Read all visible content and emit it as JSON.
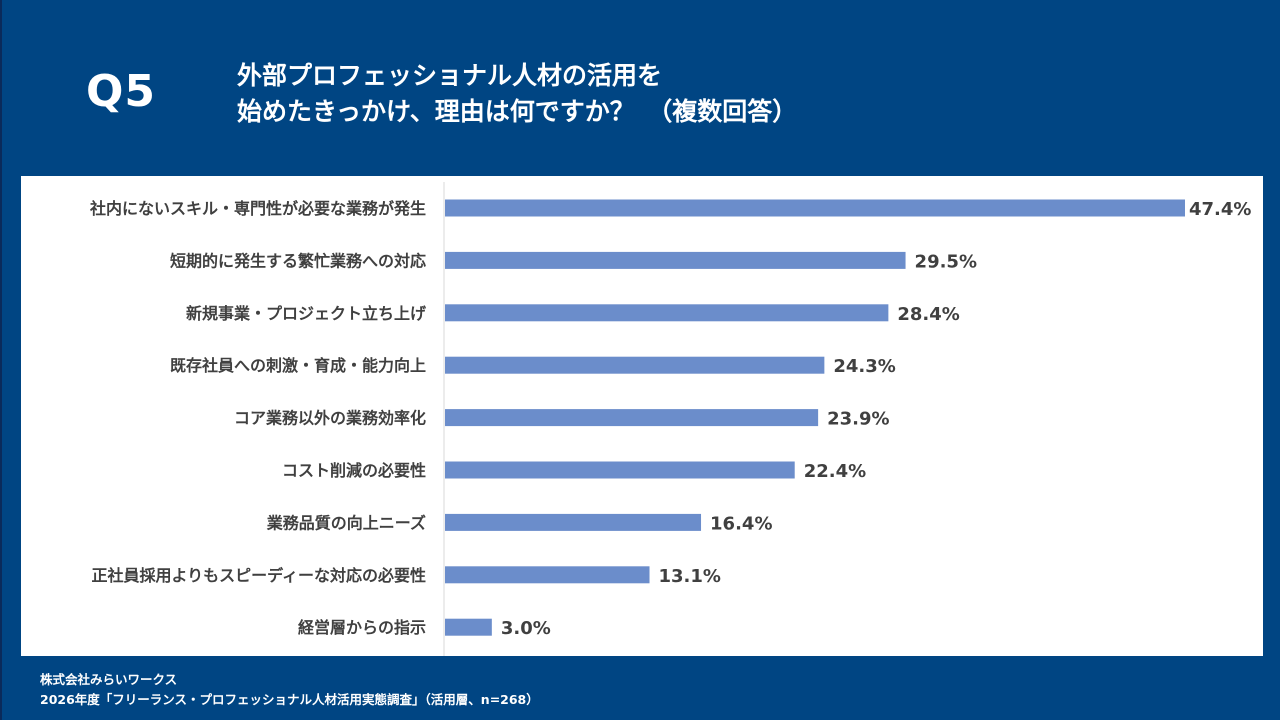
{
  "header": {
    "question_number": "Q5",
    "title_line1": "外部プロフェッショナル人材の活用を",
    "title_line2": "始めたきっかけ、理由は何ですか？　（複数回答）"
  },
  "footer": {
    "company": "株式会社みらいワークス",
    "source": "2026年度「フリーランス・プロフェッショナル人材活用実態調査」（活用層、n=268）"
  },
  "colors": {
    "background": "#004583",
    "bar": "#6B8DCB",
    "label_text": "#404040",
    "axis": "#D9D9D9"
  },
  "chart_data": {
    "type": "bar",
    "orientation": "horizontal",
    "title": "外部プロフェッショナル人材の活用を始めたきっかけ、理由は何ですか？（複数回答）",
    "xlabel": "",
    "ylabel": "",
    "unit": "%",
    "xlim": [
      0,
      47.4
    ],
    "grid": false,
    "legend": "none",
    "categories": [
      "社内にないスキル・専門性が必要な業務が発生",
      "短期的に発生する繁忙業務への対応",
      "新規事業・プロジェクト立ち上げ",
      "既存社員への刺激・育成・能力向上",
      "コア業務以外の業務効率化",
      "コスト削減の必要性",
      "業務品質の向上ニーズ",
      "正社員採用よりもスピーディーな対応の必要性",
      "経営層からの指示"
    ],
    "values": [
      47.4,
      29.5,
      28.4,
      24.3,
      23.9,
      22.4,
      16.4,
      13.1,
      3.0
    ],
    "data_labels": [
      "47.4%",
      "29.5%",
      "28.4%",
      "24.3%",
      "23.9%",
      "22.4%",
      "16.4%",
      "13.1%",
      "3.0%"
    ]
  }
}
